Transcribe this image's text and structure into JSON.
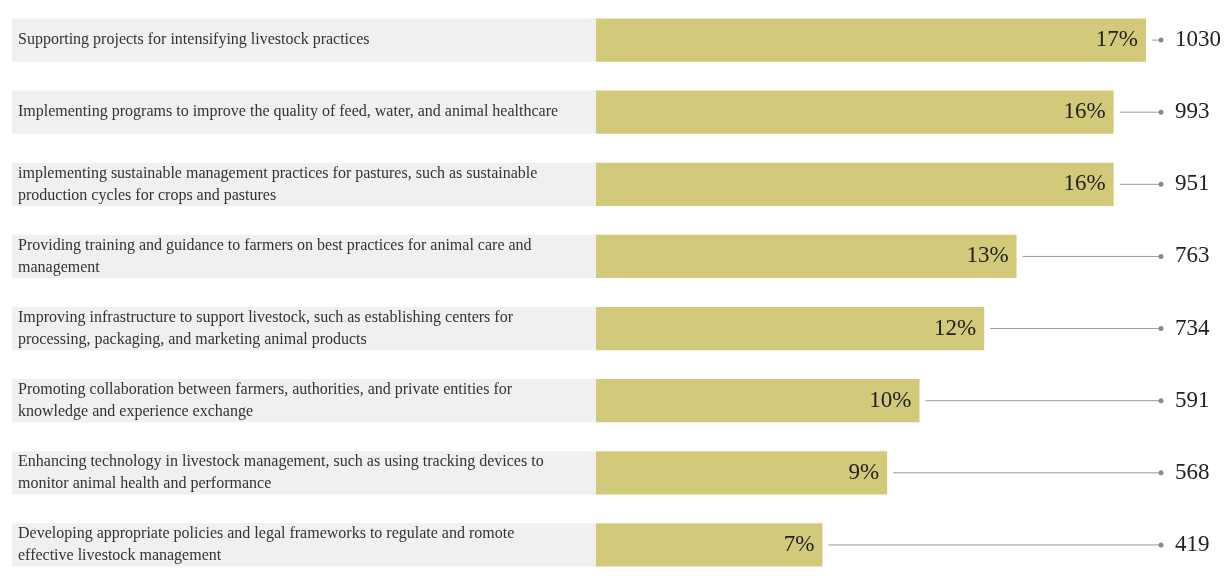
{
  "chart_data": {
    "type": "bar",
    "orientation": "horizontal",
    "categories": [
      "Supporting projects for intensifying livestock practices",
      "Implementing programs to improve the quality of feed, water, and animal healthcare",
      "implementing sustainable management practices for pastures, such as sustainable production cycles for crops and pastures",
      "Providing training and guidance to farmers on best practices for animal care and management",
      "Improving infrastructure to support livestock, such as establishing centers for processing, packaging, and marketing animal products",
      "Promoting collaboration between farmers, authorities, and private entities for knowledge and experience exchange",
      "Enhancing technology in livestock management, such as using tracking devices to monitor animal health and performance",
      "Developing appropriate policies and legal frameworks to regulate and romote effective livestock management"
    ],
    "values": [
      17,
      16,
      16,
      13,
      12,
      10,
      9,
      7
    ],
    "annotations": [
      "1030",
      "993",
      "951",
      "763",
      "734",
      "591",
      "568",
      "419"
    ],
    "value_labels": [
      "17%",
      "16%",
      "16%",
      "13%",
      "12%",
      "10%",
      "9%",
      "7%"
    ],
    "color": "#d3c97a",
    "legend": false
  }
}
